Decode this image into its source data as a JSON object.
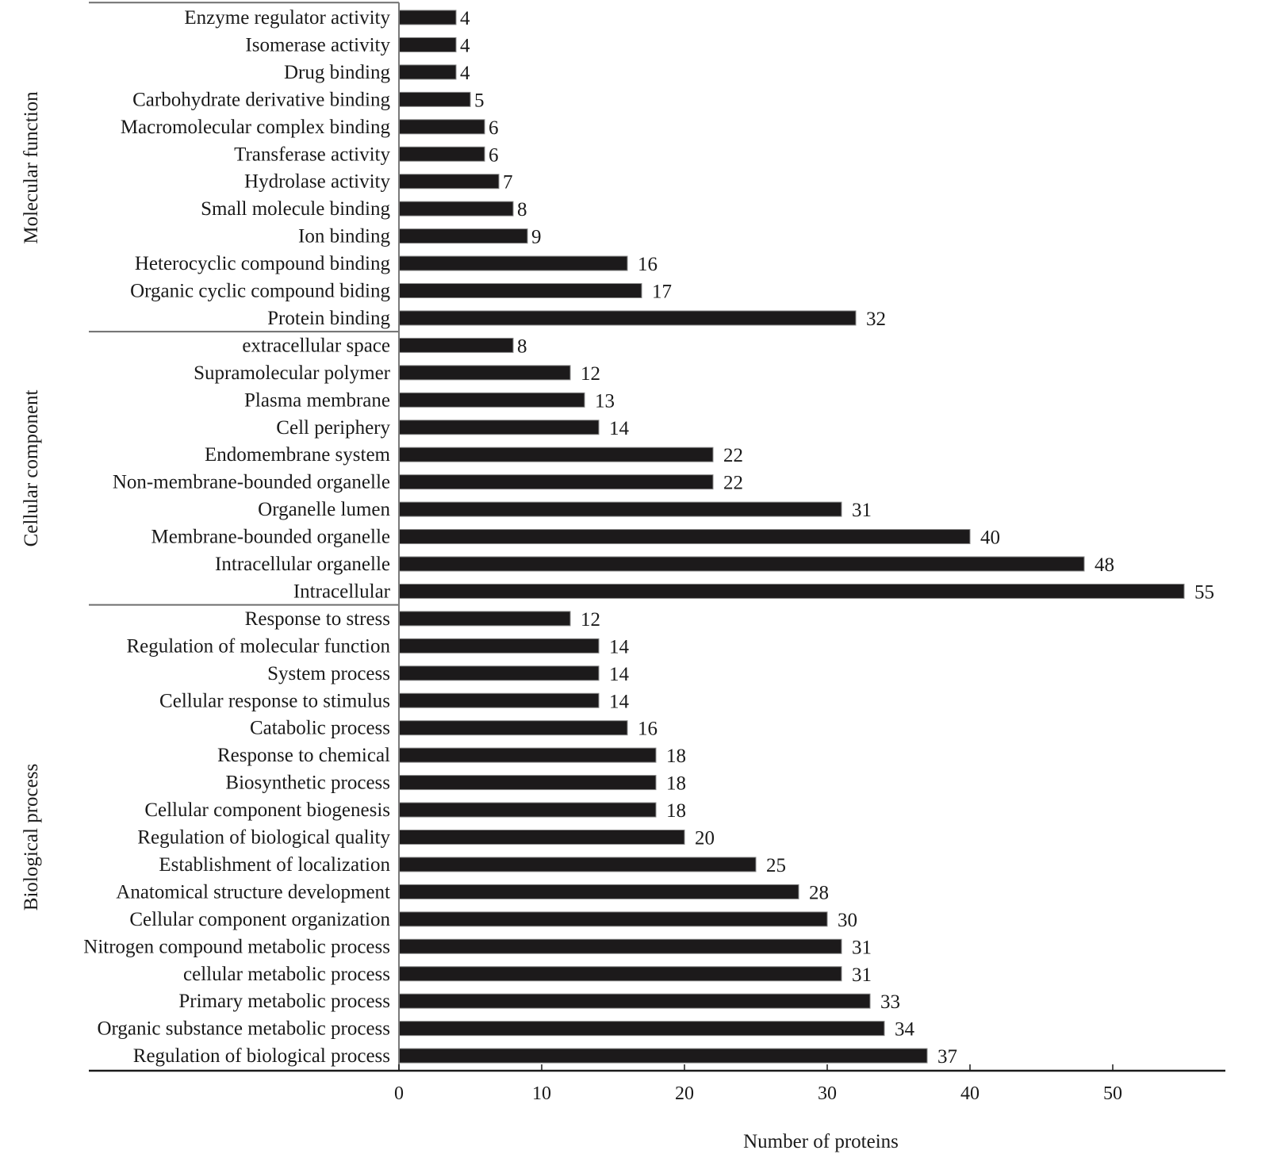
{
  "chart_data": {
    "type": "bar",
    "orientation": "horizontal",
    "title": "",
    "xlabel": "Number of proteins",
    "ylabel": "",
    "xlim": [
      0,
      57
    ],
    "xticks": [
      0,
      10,
      20,
      30,
      40,
      50
    ],
    "grid": false,
    "bar_color": "#1c1a1b",
    "groups": [
      {
        "name": "Molecular function",
        "categories": [
          "Enzyme regulator activity",
          "Isomerase activity",
          "Drug binding",
          "Carbohydrate derivative binding",
          "Macromolecular complex binding",
          "Transferase activity",
          "Hydrolase activity",
          "Small molecule binding",
          "Ion binding",
          "Heterocyclic compound binding",
          "Organic cyclic compound biding",
          "Protein binding"
        ],
        "values": [
          4,
          4,
          4,
          5,
          6,
          6,
          7,
          8,
          9,
          16,
          17,
          32
        ]
      },
      {
        "name": "Cellular component",
        "categories": [
          "extracellular space",
          "Supramolecular polymer",
          "Plasma membrane",
          "Cell periphery",
          "Endomembrane system",
          "Non-membrane-bounded organelle",
          "Organelle lumen",
          "Membrane-bounded organelle",
          "Intracellular organelle",
          "Intracellular"
        ],
        "values": [
          8,
          12,
          13,
          14,
          22,
          22,
          31,
          40,
          48,
          55
        ]
      },
      {
        "name": "Biological process",
        "categories": [
          "Response to stress",
          "Regulation of molecular function",
          "System process",
          "Cellular response to stimulus",
          "Catabolic process",
          "Response to chemical",
          "Biosynthetic process",
          "Cellular component biogenesis",
          "Regulation of biological quality",
          "Establishment of localization",
          "Anatomical structure development",
          "Cellular component organization",
          "Nitrogen compound metabolic process",
          "cellular metabolic process",
          "Primary metabolic process",
          "Organic substance metabolic process",
          "Regulation of biological process"
        ],
        "values": [
          12,
          14,
          14,
          14,
          16,
          18,
          18,
          18,
          20,
          25,
          28,
          30,
          31,
          31,
          33,
          34,
          37
        ]
      }
    ]
  }
}
